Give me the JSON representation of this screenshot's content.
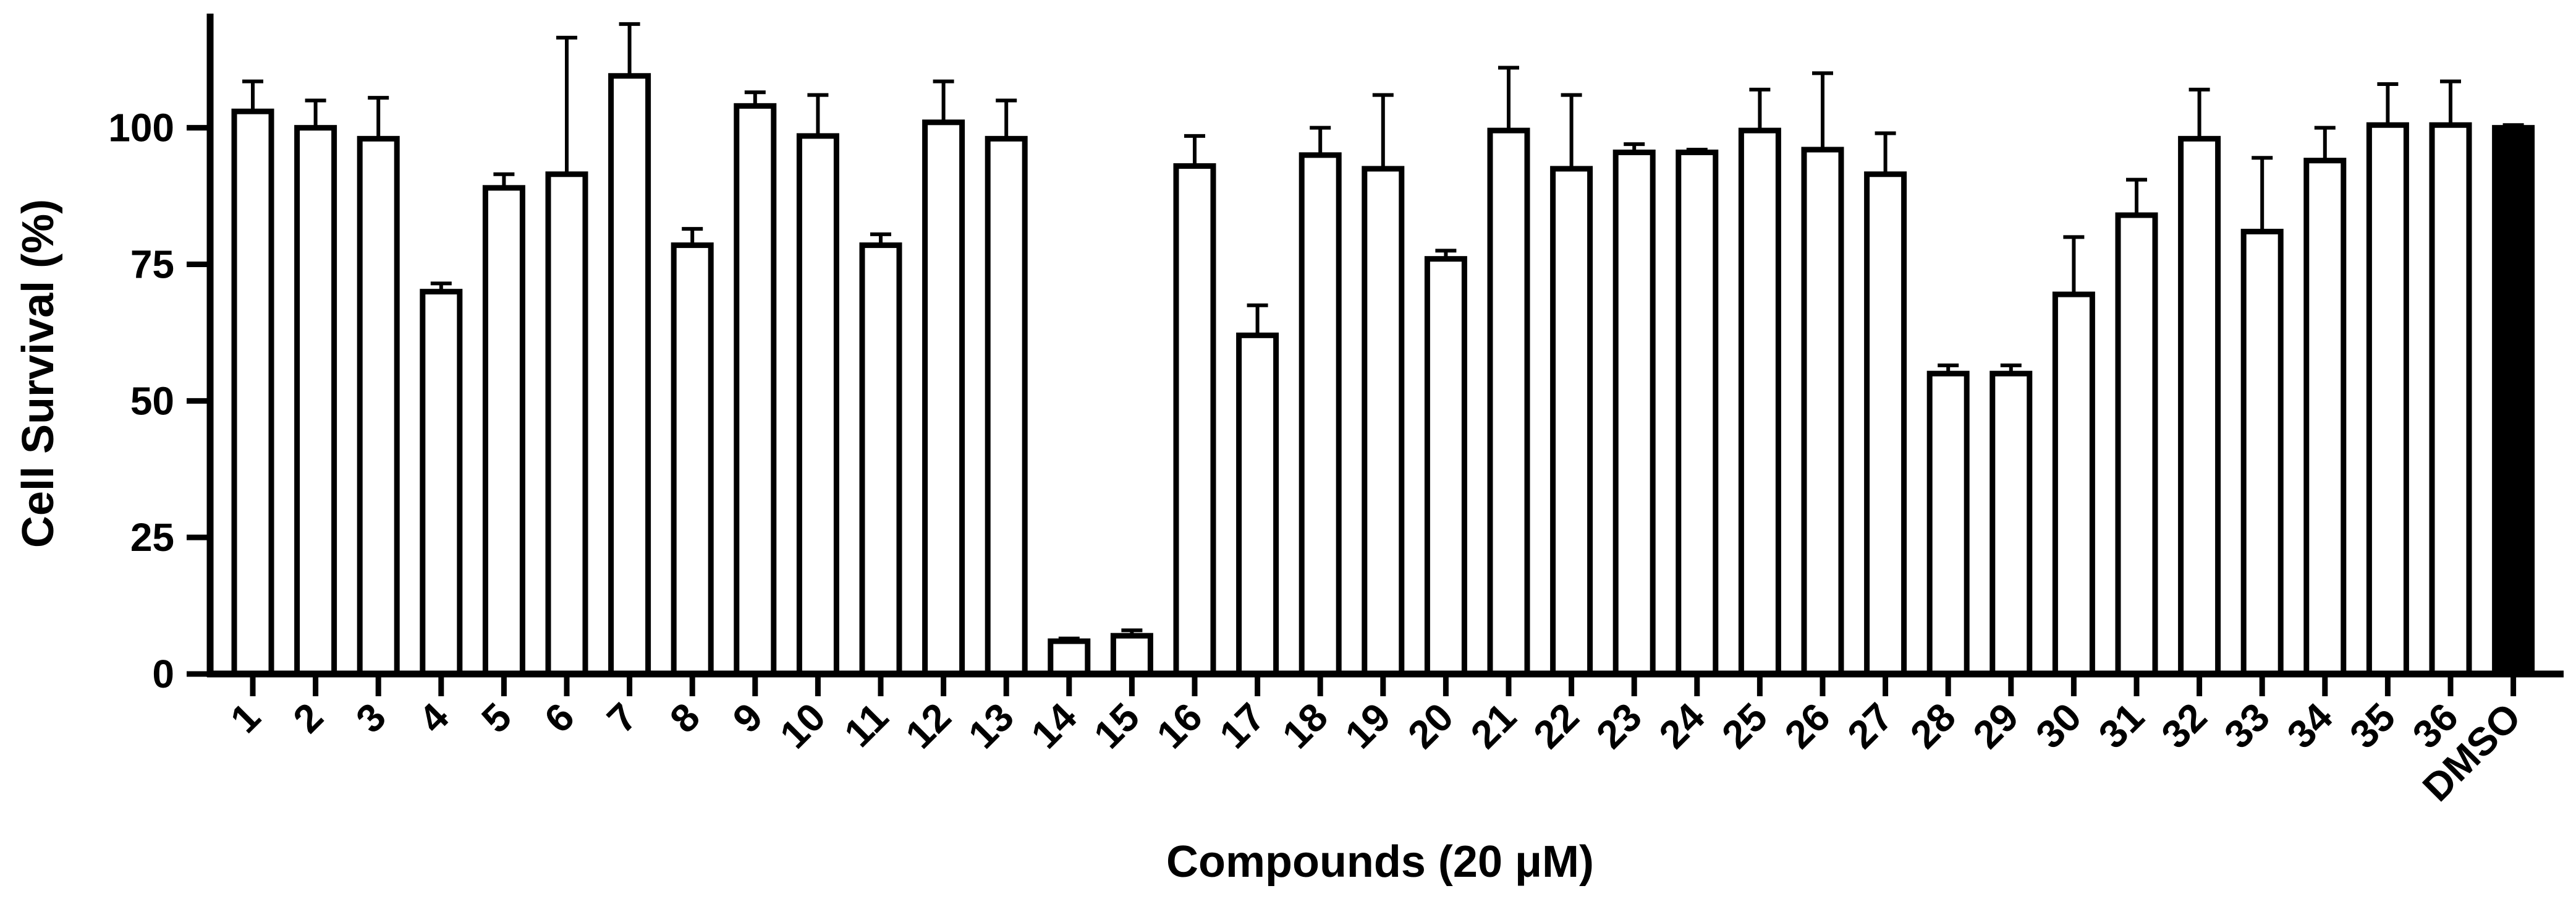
{
  "chart_data": {
    "type": "bar",
    "xlabel": "Compounds (20 μM)",
    "ylabel": "Cell Survival (%)",
    "ylim": [
      0,
      120
    ],
    "yticks": [
      0,
      25,
      50,
      75,
      100
    ],
    "grid": false,
    "categories": [
      "1",
      "2",
      "3",
      "4",
      "5",
      "6",
      "7",
      "8",
      "9",
      "10",
      "11",
      "12",
      "13",
      "14",
      "15",
      "16",
      "17",
      "18",
      "19",
      "20",
      "21",
      "22",
      "23",
      "24",
      "25",
      "26",
      "27",
      "28",
      "29",
      "30",
      "31",
      "32",
      "33",
      "34",
      "35",
      "36",
      "DMSO"
    ],
    "values": [
      103,
      100,
      98,
      70,
      89,
      91.5,
      109.5,
      78.5,
      104,
      98.5,
      78.5,
      101,
      98,
      6,
      7,
      93,
      62,
      95,
      92.5,
      76,
      99.5,
      92.5,
      95.5,
      95.5,
      99.5,
      96,
      91.5,
      55,
      55,
      69.5,
      84,
      98,
      81,
      94,
      100.5,
      100.5,
      100
    ],
    "errors": [
      5.5,
      5,
      7.5,
      1.5,
      2.5,
      25,
      9.5,
      3,
      2.5,
      7.5,
      2,
      7.5,
      7,
      0.5,
      1,
      5.5,
      5.5,
      5,
      13.5,
      1.5,
      11.5,
      13.5,
      1.5,
      0.5,
      7.5,
      14,
      7.5,
      1.5,
      1.5,
      10.5,
      6.5,
      9,
      13.5,
      6,
      7.5,
      8,
      0.5
    ],
    "colors": {
      "bar": "#ffffff",
      "highlight_bar": "#000000",
      "stroke": "#000000"
    },
    "highlight_category": "DMSO"
  }
}
